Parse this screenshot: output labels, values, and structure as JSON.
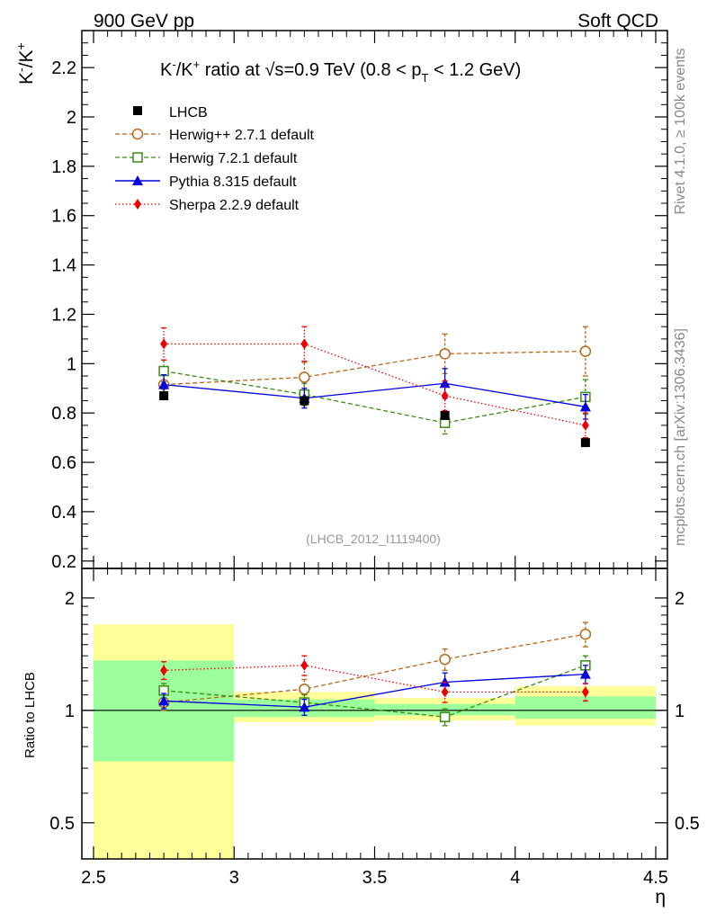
{
  "header": {
    "left": "900 GeV pp",
    "right": "Soft QCD"
  },
  "side_labels": {
    "rivet": "Rivet 4.1.0, ≥ 100k events",
    "mcplots": "mcplots.cern.ch [arXiv:1306.3436]"
  },
  "chart_data": [
    {
      "type": "scatter",
      "panel": "main",
      "title": {
        "pre": "K",
        "sup1": "-",
        "mid": "/K",
        "sup2": "+",
        "ratio_at": " ratio at ",
        "sqrt": "√s",
        "energy": "=0.9 TeV (0.8 < p",
        "sub": "T",
        "post": " < 1.2 GeV)"
      },
      "ylabel": {
        "base1": "K",
        "sup1": "-",
        "base2": "/K",
        "sup2": "+"
      },
      "watermark": "(LHCB_2012_I1119400)",
      "xlim": [
        2.5,
        4.5
      ],
      "ylim": [
        0.17,
        2.35
      ],
      "yticks": [
        "0.2",
        "0.4",
        "0.6",
        "0.8",
        "1",
        "1.2",
        "1.4",
        "1.6",
        "1.8",
        "2",
        "2.2"
      ],
      "ytick_values": [
        0.2,
        0.4,
        0.6,
        0.8,
        1.0,
        1.2,
        1.4,
        1.6,
        1.8,
        2.0,
        2.2
      ],
      "x": [
        2.75,
        3.25,
        3.75,
        4.25
      ],
      "series": [
        {
          "name": "LHCB",
          "color": "#000000",
          "marker": "square-filled",
          "line": "none",
          "values": [
            0.87,
            0.85,
            0.79,
            0.68
          ],
          "err": [
            0.012,
            0.012,
            0.012,
            0.012
          ]
        },
        {
          "name": "Herwig++ 2.7.1 default",
          "color": "#b8671a",
          "marker": "circle-open",
          "line": "dashed",
          "values": [
            0.915,
            0.945,
            1.04,
            1.05
          ],
          "err": [
            0.045,
            0.06,
            0.08,
            0.1
          ]
        },
        {
          "name": "Herwig 7.2.1 default",
          "color": "#3a8a14",
          "marker": "square-open",
          "line": "dashed",
          "values": [
            0.97,
            0.875,
            0.76,
            0.865
          ],
          "err": [
            0.045,
            0.045,
            0.045,
            0.07
          ]
        },
        {
          "name": "Pythia 8.315 default",
          "color": "#0000dd",
          "marker": "triangle-filled",
          "line": "solid",
          "values": [
            0.915,
            0.86,
            0.92,
            0.825
          ],
          "err": [
            0.04,
            0.04,
            0.06,
            0.05
          ]
        },
        {
          "name": "Sherpa 2.2.9 default",
          "color": "#ee0000",
          "marker": "diamond-filled",
          "line": "dotted",
          "values": [
            1.08,
            1.08,
            0.87,
            0.75
          ],
          "err": [
            0.065,
            0.07,
            0.06,
            0.05
          ]
        }
      ]
    },
    {
      "type": "scatter",
      "panel": "ratio",
      "ylabel": "Ratio to LHCB",
      "xlabel": "η",
      "xlim": [
        2.5,
        4.5
      ],
      "ylim": [
        0.4,
        2.4
      ],
      "yscale": "log",
      "yticks": [
        "0.5",
        "1",
        "2"
      ],
      "ytick_values": [
        0.5,
        1.0,
        2.0
      ],
      "xticks": [
        "2.5",
        "3",
        "3.5",
        "4",
        "4.5"
      ],
      "xtick_values": [
        2.5,
        3.0,
        3.5,
        4.0,
        4.5
      ],
      "bands": [
        {
          "x": [
            2.5,
            3.0
          ],
          "yellow": [
            0.36,
            1.7
          ],
          "green": [
            0.73,
            1.36
          ]
        },
        {
          "x": [
            3.0,
            3.5
          ],
          "yellow": [
            0.93,
            1.12
          ],
          "green": [
            0.96,
            1.07
          ]
        },
        {
          "x": [
            3.5,
            4.0
          ],
          "yellow": [
            0.94,
            1.08
          ],
          "green": [
            0.97,
            1.04
          ]
        },
        {
          "x": [
            4.0,
            4.5
          ],
          "yellow": [
            0.91,
            1.16
          ],
          "green": [
            0.95,
            1.09
          ]
        }
      ],
      "x": [
        2.75,
        3.25,
        3.75,
        4.25
      ],
      "series": [
        {
          "name": "Herwig++ 2.7.1 default",
          "values": [
            1.05,
            1.14,
            1.37,
            1.6
          ],
          "err": [
            0.05,
            0.07,
            0.09,
            0.12
          ]
        },
        {
          "name": "Herwig 7.2.1 default",
          "values": [
            1.13,
            1.05,
            0.96,
            1.32
          ],
          "err": [
            0.05,
            0.05,
            0.05,
            0.08
          ]
        },
        {
          "name": "Pythia 8.315 default",
          "values": [
            1.06,
            1.02,
            1.19,
            1.25
          ],
          "err": [
            0.05,
            0.05,
            0.07,
            0.07
          ]
        },
        {
          "name": "Sherpa 2.2.9 default",
          "values": [
            1.28,
            1.32,
            1.12,
            1.12
          ],
          "err": [
            0.07,
            0.08,
            0.07,
            0.06
          ]
        }
      ]
    }
  ]
}
